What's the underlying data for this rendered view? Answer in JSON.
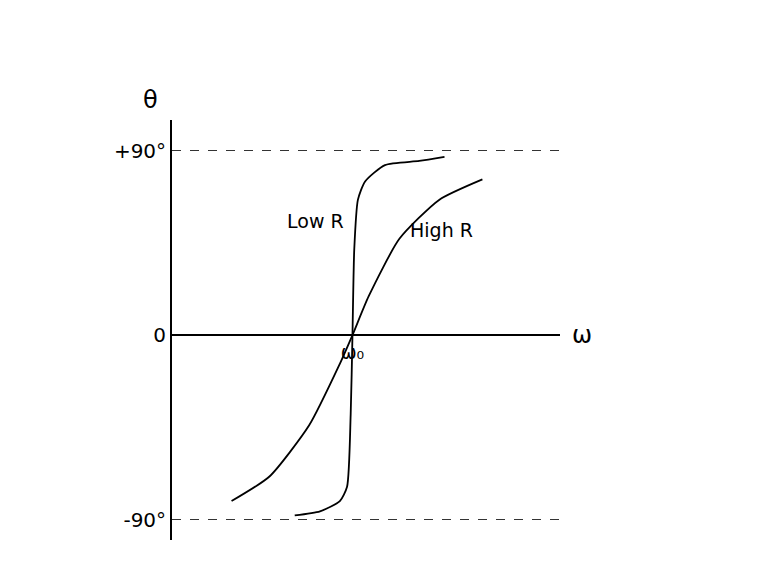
{
  "chart_data": {
    "type": "line",
    "x_label": "ω",
    "y_label": "θ",
    "xlim": [
      0,
      2.15
    ],
    "xticks": [
      {
        "value": 1,
        "label": "ω₀"
      }
    ],
    "ylim": [
      -100,
      105
    ],
    "yticks": [
      {
        "value": 90,
        "label": "+90°"
      },
      0,
      {
        "value": -90,
        "label": "-90°"
      }
    ],
    "grid": true,
    "series": [
      {
        "name": "Low R",
        "color": "#000000",
        "x": [
          0.68,
          0.82,
          0.93,
          0.97,
          0.99,
          1.0,
          1.01,
          1.03,
          1.07,
          1.18,
          1.37,
          1.51
        ],
        "values": [
          -88,
          -86,
          -81,
          -74,
          -39,
          0,
          42,
          66,
          75,
          83,
          85,
          87
        ]
      },
      {
        "name": "High R",
        "color": "#000000",
        "x": [
          0.33,
          0.54,
          0.76,
          0.93,
          1.0,
          1.09,
          1.26,
          1.48,
          1.72
        ],
        "values": [
          -81,
          -69,
          -44,
          -14,
          0,
          19,
          47,
          66,
          76
        ]
      }
    ]
  }
}
